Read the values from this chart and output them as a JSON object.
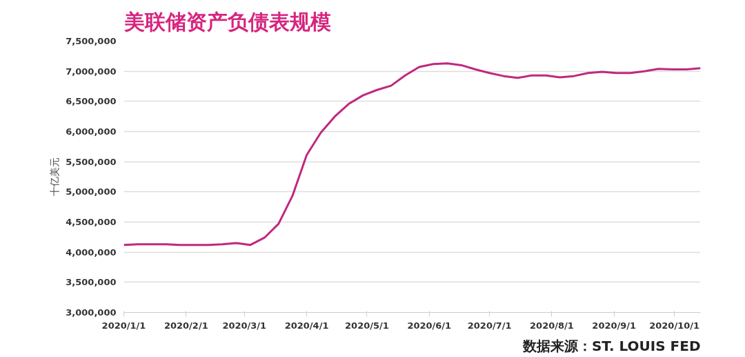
{
  "chart_data": {
    "type": "line",
    "title": "美联储资产负债表规模",
    "ylabel": "十亿美元",
    "annotations": [
      "数据来源：ST. LOUIS FED"
    ],
    "x": [
      "2020-01-01",
      "2020-01-08",
      "2020-01-15",
      "2020-01-22",
      "2020-01-29",
      "2020-02-05",
      "2020-02-12",
      "2020-02-19",
      "2020-02-26",
      "2020-03-04",
      "2020-03-11",
      "2020-03-18",
      "2020-03-25",
      "2020-04-01",
      "2020-04-08",
      "2020-04-15",
      "2020-04-22",
      "2020-04-29",
      "2020-05-06",
      "2020-05-13",
      "2020-05-20",
      "2020-05-27",
      "2020-06-03",
      "2020-06-10",
      "2020-06-17",
      "2020-06-24",
      "2020-07-01",
      "2020-07-08",
      "2020-07-15",
      "2020-07-22",
      "2020-07-29",
      "2020-08-05",
      "2020-08-12",
      "2020-08-19",
      "2020-08-26",
      "2020-09-02",
      "2020-09-09",
      "2020-09-16",
      "2020-09-23",
      "2020-09-30",
      "2020-10-07",
      "2020-10-14"
    ],
    "series": [
      {
        "color": "#c0287f",
        "values": [
          4120000,
          4130000,
          4130000,
          4130000,
          4120000,
          4120000,
          4120000,
          4130000,
          4150000,
          4120000,
          4240000,
          4470000,
          4940000,
          5610000,
          5980000,
          6250000,
          6460000,
          6600000,
          6690000,
          6760000,
          6930000,
          7070000,
          7120000,
          7130000,
          7100000,
          7030000,
          6970000,
          6920000,
          6890000,
          6930000,
          6930000,
          6900000,
          6920000,
          6970000,
          6990000,
          6970000,
          6970000,
          7000000,
          7040000,
          7030000,
          7030000,
          7050000
        ]
      }
    ],
    "xlim": [
      "2020-01-01",
      "2020-10-14"
    ],
    "xticks": [
      {
        "value": "2020-01-01",
        "label": "2020/1/1"
      },
      {
        "value": "2020-02-01",
        "label": "2020/2/1"
      },
      {
        "value": "2020-03-01",
        "label": "2020/3/1"
      },
      {
        "value": "2020-04-01",
        "label": "2020/4/1"
      },
      {
        "value": "2020-05-01",
        "label": "2020/5/1"
      },
      {
        "value": "2020-06-01",
        "label": "2020/6/1"
      },
      {
        "value": "2020-07-01",
        "label": "2020/7/1"
      },
      {
        "value": "2020-08-01",
        "label": "2020/8/1"
      },
      {
        "value": "2020-09-01",
        "label": "2020/9/1"
      },
      {
        "value": "2020-10-01",
        "label": "2020/10/1"
      }
    ],
    "ylim": [
      3000000,
      7500000
    ],
    "yticks": [
      {
        "value": 3000000,
        "label": "3,000,000"
      },
      {
        "value": 3500000,
        "label": "3,500,000"
      },
      {
        "value": 4000000,
        "label": "4,000,000"
      },
      {
        "value": 4500000,
        "label": "4,500,000"
      },
      {
        "value": 5000000,
        "label": "5,000,000"
      },
      {
        "value": 5500000,
        "label": "5,500,000"
      },
      {
        "value": 6000000,
        "label": "6,000,000"
      },
      {
        "value": 6500000,
        "label": "6,500,000"
      },
      {
        "value": 7000000,
        "label": "7,000,000"
      },
      {
        "value": 7500000,
        "label": "7,500,000"
      }
    ],
    "grid": "y",
    "marker": "none",
    "line_style": "solid"
  }
}
